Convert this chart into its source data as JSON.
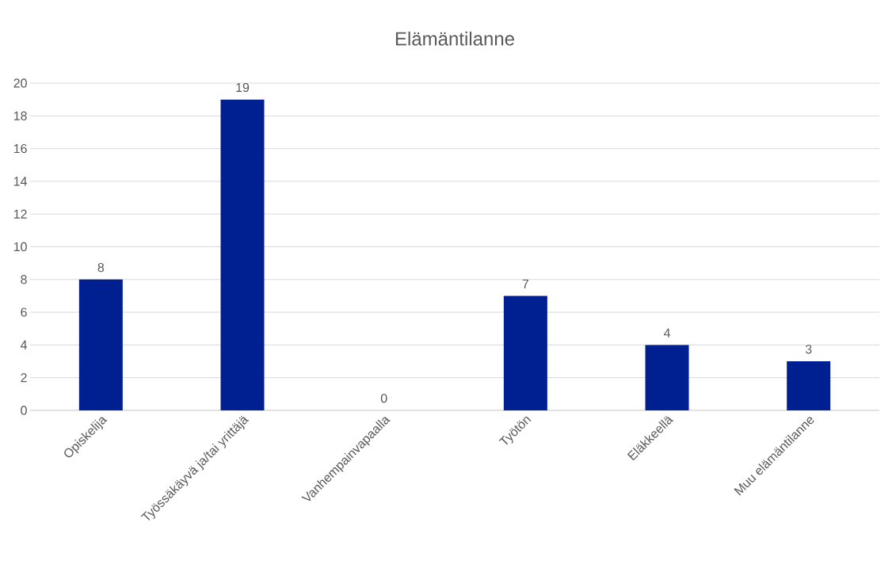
{
  "chart_data": {
    "type": "bar",
    "title": "Elämäntilanne",
    "categories": [
      "Opiskelija",
      "Työssäkäyvä ja/tai yrittäjä",
      "Vanhempainvapaalla",
      "Työtön",
      "Eläkkeellä",
      "Muu elämäntilanne"
    ],
    "values": [
      8,
      19,
      0,
      7,
      4,
      3
    ],
    "color": "#001f91",
    "ylim": [
      0,
      20
    ],
    "yticks": [
      0,
      2,
      4,
      6,
      8,
      10,
      12,
      14,
      16,
      18,
      20
    ],
    "grid": "y",
    "data_labels": true
  }
}
